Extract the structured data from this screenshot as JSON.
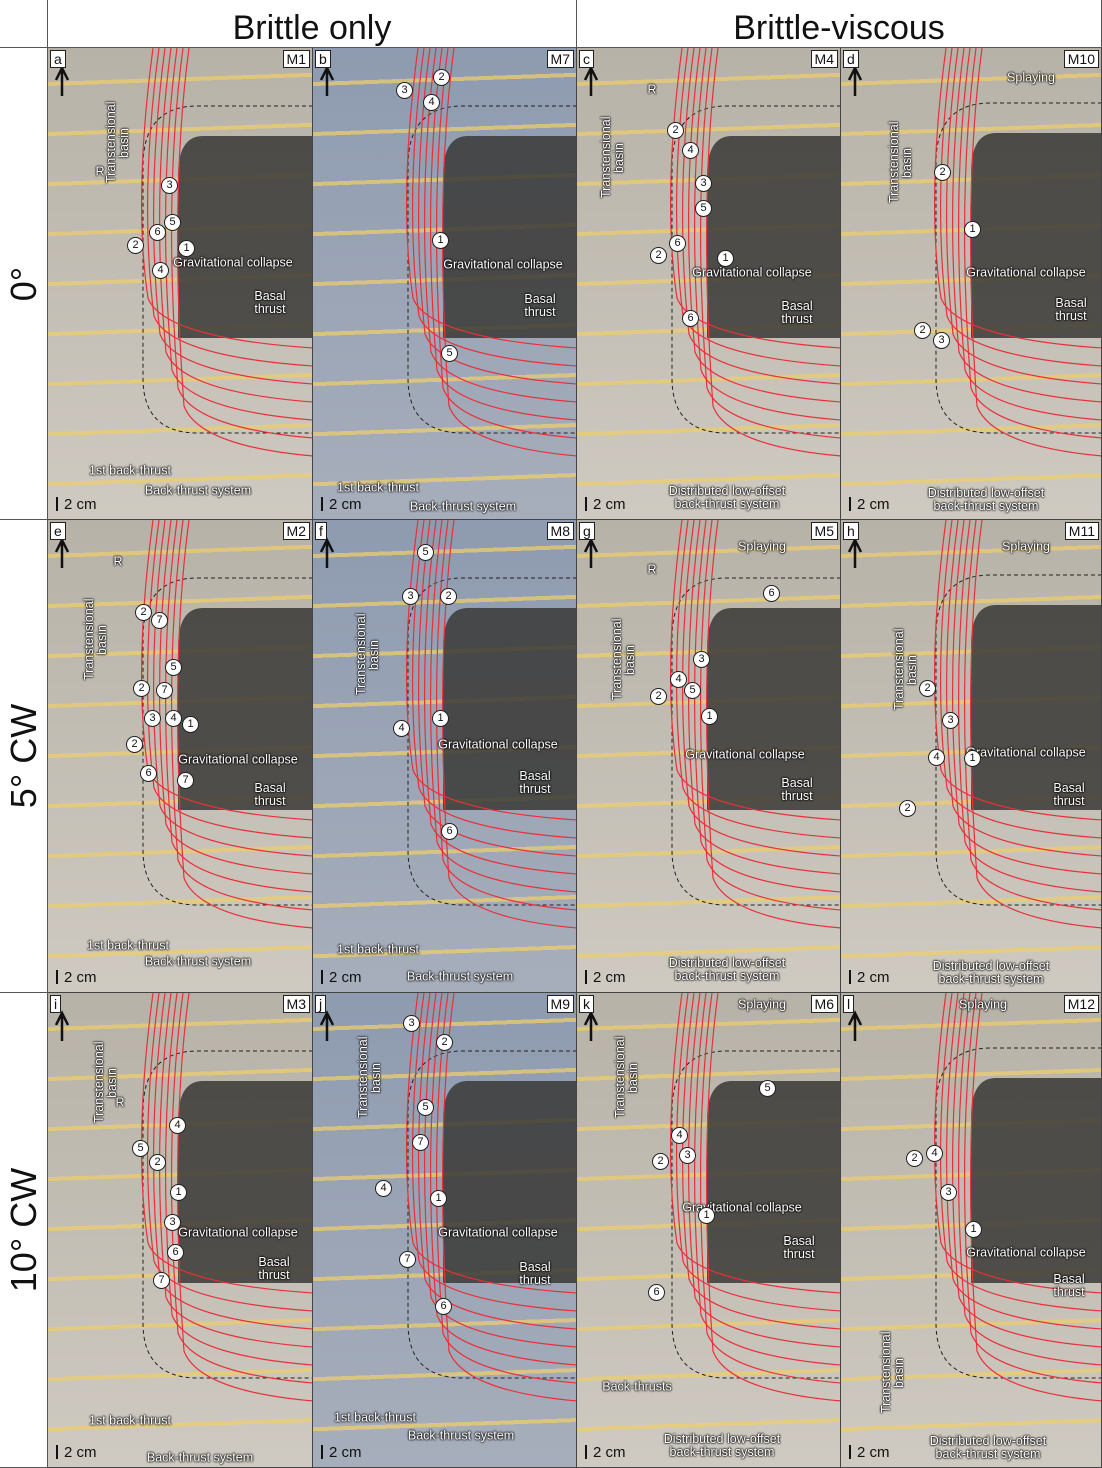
{
  "header": {
    "columns": [
      "Brittle only",
      "Brittle-viscous"
    ],
    "rows": [
      "0°",
      "5° CW",
      "10° CW"
    ]
  },
  "panels": [
    {
      "letter": "a",
      "model": "M1",
      "scale": "2 cm",
      "annotations": [
        "Transtensional basin",
        "R",
        "Gravitational collapse",
        "Basal thrust",
        "1st back-thrust",
        "Back-thrust system"
      ],
      "markers": [
        3,
        5,
        6,
        2,
        1,
        4
      ]
    },
    {
      "letter": "b",
      "model": "M7",
      "scale": "2 cm",
      "annotations": [
        "Gravitational collapse",
        "Basal thrust",
        "1st back-thrust",
        "Back-thrust system"
      ],
      "markers": [
        2,
        3,
        4,
        1,
        5
      ]
    },
    {
      "letter": "c",
      "model": "M4",
      "scale": "2 cm",
      "annotations": [
        "R",
        "Transtensional basin",
        "Gravitational collapse",
        "Basal thrust",
        "Distributed low-offset back-thrust system"
      ],
      "markers": [
        2,
        4,
        3,
        5,
        6,
        2,
        1,
        6
      ]
    },
    {
      "letter": "d",
      "model": "M10",
      "scale": "2 cm",
      "annotations": [
        "Splaying",
        "Transtensional basin",
        "Gravitational collapse",
        "Basal thrust",
        "Distributed low-offset back-thrust system"
      ],
      "markers": [
        2,
        1,
        2,
        3
      ]
    },
    {
      "letter": "e",
      "model": "M2",
      "scale": "2 cm",
      "annotations": [
        "R",
        "Transtensional basin",
        "Gravitational collapse",
        "Basal thrust",
        "1st back-thrust",
        "Back-thrust system"
      ],
      "markers": [
        2,
        7,
        5,
        2,
        7,
        3,
        4,
        1,
        2,
        6,
        7
      ]
    },
    {
      "letter": "f",
      "model": "M8",
      "scale": "2 cm",
      "annotations": [
        "Transtensional basin",
        "Gravitational collapse",
        "Basal thrust",
        "1st back-thrust",
        "Back-thrust system"
      ],
      "markers": [
        5,
        3,
        2,
        4,
        1,
        6
      ]
    },
    {
      "letter": "g",
      "model": "M5",
      "scale": "2 cm",
      "annotations": [
        "Splaying",
        "R",
        "Transtensional basin",
        "Gravitational collapse",
        "Basal thrust",
        "Distributed low-offset back-thrust system"
      ],
      "markers": [
        6,
        3,
        4,
        5,
        2,
        1
      ]
    },
    {
      "letter": "h",
      "model": "M11",
      "scale": "2 cm",
      "annotations": [
        "Splaying",
        "Transtensional basin",
        "Gravitational collapse",
        "Basal thrust",
        "Distributed low-offset back-thrust system"
      ],
      "markers": [
        2,
        3,
        4,
        1,
        2
      ]
    },
    {
      "letter": "i",
      "model": "M3",
      "scale": "2 cm",
      "annotations": [
        "R",
        "Transtensional basin",
        "Gravitational collapse",
        "Basal thrust",
        "1st back-thrust",
        "Back-thrust system"
      ],
      "markers": [
        4,
        5,
        2,
        1,
        3,
        6,
        7
      ]
    },
    {
      "letter": "j",
      "model": "M9",
      "scale": "2 cm",
      "annotations": [
        "Transtensional basin",
        "Gravitational collapse",
        "Basal thrust",
        "1st back-thrust",
        "Back-thrust system"
      ],
      "markers": [
        3,
        2,
        5,
        7,
        4,
        1,
        7,
        6
      ]
    },
    {
      "letter": "k",
      "model": "M6",
      "scale": "2 cm",
      "annotations": [
        "Splaying",
        "Transtensional basin",
        "Gravitational collapse",
        "Basal thrust",
        "Back-thrusts",
        "Distributed low-offset back-thrust system"
      ],
      "markers": [
        5,
        4,
        2,
        3,
        1,
        6
      ]
    },
    {
      "letter": "l",
      "model": "M12",
      "scale": "2 cm",
      "annotations": [
        "Splaying",
        "Gravitational collapse",
        "Basal thrust",
        "Transtensional basin",
        "Distributed low-offset back-thrust system"
      ],
      "markers": [
        2,
        4,
        3,
        1
      ]
    }
  ]
}
